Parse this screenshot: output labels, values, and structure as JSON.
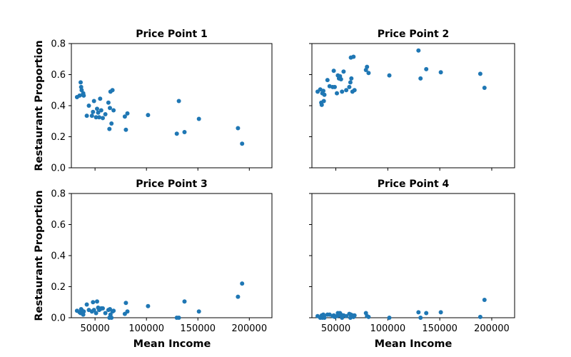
{
  "figure": {
    "ylabel": "Restaurant Proportion",
    "xlabel": "Mean Income"
  },
  "chart_data": {
    "type": "scatter",
    "layout": "2x2 grid, shared axes",
    "xlabel": "Mean Income",
    "ylabel": "Restaurant Proportion",
    "xlim": [
      27000,
      222000
    ],
    "ylim": [
      0,
      0.8
    ],
    "x_ticks": [
      50000,
      100000,
      150000,
      200000
    ],
    "y_ticks": [
      0.0,
      0.2,
      0.4,
      0.6,
      0.8
    ],
    "x_tick_labels": [
      "50000",
      "100000",
      "150000",
      "200000"
    ],
    "y_tick_labels": [
      "0.0",
      "0.2",
      "0.4",
      "0.6",
      "0.8"
    ],
    "grid": false,
    "point_color": "#1f77b4",
    "panels": [
      {
        "title": "Price Point 1",
        "points": [
          [
            32500,
            0.455
          ],
          [
            35000,
            0.465
          ],
          [
            36000,
            0.55
          ],
          [
            36500,
            0.52
          ],
          [
            37000,
            0.5
          ],
          [
            38000,
            0.47
          ],
          [
            38500,
            0.48
          ],
          [
            39000,
            0.465
          ],
          [
            42000,
            0.335
          ],
          [
            44000,
            0.4
          ],
          [
            47000,
            0.335
          ],
          [
            48000,
            0.36
          ],
          [
            49000,
            0.43
          ],
          [
            51000,
            0.325
          ],
          [
            52000,
            0.38
          ],
          [
            53000,
            0.355
          ],
          [
            54000,
            0.325
          ],
          [
            55000,
            0.445
          ],
          [
            56000,
            0.37
          ],
          [
            57500,
            0.32
          ],
          [
            60000,
            0.345
          ],
          [
            63000,
            0.42
          ],
          [
            64000,
            0.25
          ],
          [
            64500,
            0.385
          ],
          [
            65000,
            0.49
          ],
          [
            66000,
            0.285
          ],
          [
            67000,
            0.5
          ],
          [
            68000,
            0.37
          ],
          [
            79000,
            0.33
          ],
          [
            80000,
            0.245
          ],
          [
            81500,
            0.35
          ],
          [
            101500,
            0.34
          ],
          [
            129500,
            0.22
          ],
          [
            131500,
            0.43
          ],
          [
            137000,
            0.23
          ],
          [
            151000,
            0.315
          ],
          [
            189000,
            0.255
          ],
          [
            193000,
            0.155
          ]
        ]
      },
      {
        "title": "Price Point 2",
        "points": [
          [
            32500,
            0.49
          ],
          [
            35000,
            0.505
          ],
          [
            36000,
            0.42
          ],
          [
            36500,
            0.405
          ],
          [
            37000,
            0.48
          ],
          [
            38000,
            0.495
          ],
          [
            38500,
            0.43
          ],
          [
            39000,
            0.47
          ],
          [
            42000,
            0.565
          ],
          [
            44000,
            0.525
          ],
          [
            47000,
            0.52
          ],
          [
            48000,
            0.625
          ],
          [
            49000,
            0.52
          ],
          [
            51000,
            0.48
          ],
          [
            52000,
            0.595
          ],
          [
            53000,
            0.575
          ],
          [
            54000,
            0.59
          ],
          [
            55000,
            0.57
          ],
          [
            56000,
            0.49
          ],
          [
            57500,
            0.62
          ],
          [
            60000,
            0.5
          ],
          [
            63000,
            0.52
          ],
          [
            64000,
            0.55
          ],
          [
            64500,
            0.71
          ],
          [
            65000,
            0.575
          ],
          [
            66000,
            0.49
          ],
          [
            67000,
            0.715
          ],
          [
            68000,
            0.5
          ],
          [
            79000,
            0.63
          ],
          [
            80000,
            0.65
          ],
          [
            81500,
            0.61
          ],
          [
            101500,
            0.595
          ],
          [
            129500,
            0.755
          ],
          [
            131500,
            0.575
          ],
          [
            137000,
            0.635
          ],
          [
            151000,
            0.615
          ],
          [
            189000,
            0.605
          ],
          [
            193000,
            0.515
          ]
        ]
      },
      {
        "title": "Price Point 3",
        "points": [
          [
            32500,
            0.045
          ],
          [
            35000,
            0.035
          ],
          [
            36000,
            0.03
          ],
          [
            36500,
            0.055
          ],
          [
            37000,
            0.05
          ],
          [
            38000,
            0.03
          ],
          [
            38500,
            0.02
          ],
          [
            39000,
            0.04
          ],
          [
            42000,
            0.085
          ],
          [
            44000,
            0.05
          ],
          [
            47000,
            0.04
          ],
          [
            48000,
            0.1
          ],
          [
            49000,
            0.05
          ],
          [
            51000,
            0.03
          ],
          [
            52000,
            0.105
          ],
          [
            53000,
            0.065
          ],
          [
            54000,
            0.05
          ],
          [
            55000,
            0.055
          ],
          [
            56000,
            0.06
          ],
          [
            57500,
            0.06
          ],
          [
            60000,
            0.03
          ],
          [
            63000,
            0.05
          ],
          [
            64000,
            0.0
          ],
          [
            64500,
            0.055
          ],
          [
            65000,
            0.02
          ],
          [
            66000,
            0.0
          ],
          [
            67000,
            0.04
          ],
          [
            68000,
            0.045
          ],
          [
            79000,
            0.025
          ],
          [
            80000,
            0.095
          ],
          [
            81500,
            0.04
          ],
          [
            101500,
            0.075
          ],
          [
            129500,
            0.0
          ],
          [
            131500,
            0.0
          ],
          [
            137000,
            0.105
          ],
          [
            151000,
            0.04
          ],
          [
            189000,
            0.135
          ],
          [
            193000,
            0.22
          ]
        ]
      },
      {
        "title": "Price Point 4",
        "points": [
          [
            32500,
            0.01
          ],
          [
            35000,
            0.0
          ],
          [
            36000,
            0.005
          ],
          [
            36500,
            0.015
          ],
          [
            37000,
            0.0
          ],
          [
            38000,
            0.02
          ],
          [
            38500,
            0.01
          ],
          [
            39000,
            0.0
          ],
          [
            42000,
            0.02
          ],
          [
            44000,
            0.02
          ],
          [
            47000,
            0.01
          ],
          [
            48000,
            0.015
          ],
          [
            49000,
            0.005
          ],
          [
            51000,
            0.01
          ],
          [
            52000,
            0.03
          ],
          [
            53000,
            0.015
          ],
          [
            54000,
            0.03
          ],
          [
            55000,
            0.02
          ],
          [
            56000,
            0.0
          ],
          [
            57500,
            0.015
          ],
          [
            60000,
            0.01
          ],
          [
            63000,
            0.025
          ],
          [
            64000,
            0.0
          ],
          [
            64500,
            0.02
          ],
          [
            65000,
            0.01
          ],
          [
            66000,
            0.015
          ],
          [
            67000,
            0.005
          ],
          [
            68000,
            0.015
          ],
          [
            79000,
            0.03
          ],
          [
            80000,
            0.01
          ],
          [
            81500,
            0.005
          ],
          [
            101500,
            0.0
          ],
          [
            129500,
            0.035
          ],
          [
            131500,
            0.0
          ],
          [
            137000,
            0.03
          ],
          [
            151000,
            0.035
          ],
          [
            189000,
            0.005
          ],
          [
            193000,
            0.115
          ]
        ]
      }
    ]
  }
}
